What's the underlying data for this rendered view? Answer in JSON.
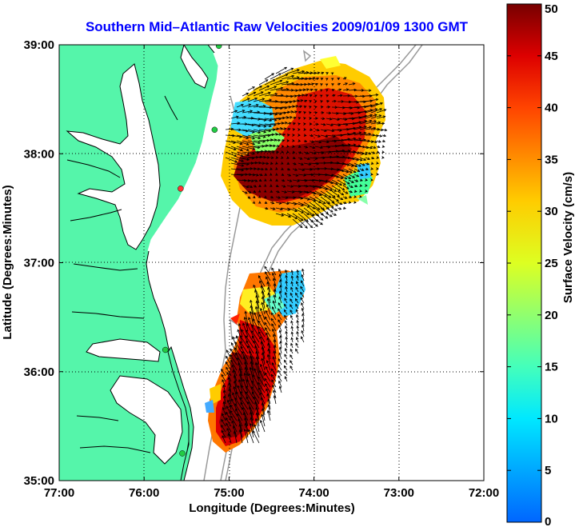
{
  "title": "Southern Mid–Atlantic Raw Velocities 2009/01/09 1300 GMT",
  "colors": {
    "title": "#0000ff",
    "land": "#55f5aa",
    "water": "#ffffff",
    "coast": "#000000",
    "bathy": "#9a9a9a",
    "grid": "#000000",
    "station": "#22cc44",
    "station_highlight": "#ff3333"
  },
  "map": {
    "xlabel": "Longitude (Degrees:Minutes)",
    "ylabel": "Latitude (Degrees:Minutes)",
    "lon_range": [
      -77,
      -72
    ],
    "lat_range": [
      35,
      39
    ],
    "x_ticks": [
      {
        "value": -77,
        "label": "77:00"
      },
      {
        "value": -76,
        "label": "76:00"
      },
      {
        "value": -75,
        "label": "75:00"
      },
      {
        "value": -74,
        "label": "74:00"
      },
      {
        "value": -73,
        "label": "73:00"
      },
      {
        "value": -72,
        "label": "72:00"
      }
    ],
    "y_ticks": [
      {
        "value": 35,
        "label": "35:00"
      },
      {
        "value": 36,
        "label": "36:00"
      },
      {
        "value": 37,
        "label": "37:00"
      },
      {
        "value": 38,
        "label": "38:00"
      },
      {
        "value": 39,
        "label": "39:00"
      }
    ],
    "grid": "dotted"
  },
  "colorbar": {
    "label": "Surface Velocity (cm/s)",
    "min": 0,
    "max": 50,
    "ticks": [
      {
        "value": 0,
        "label": "0"
      },
      {
        "value": 5,
        "label": "5"
      },
      {
        "value": 10,
        "label": "10"
      },
      {
        "value": 15,
        "label": "15"
      },
      {
        "value": 20,
        "label": "20"
      },
      {
        "value": 25,
        "label": "25"
      },
      {
        "value": 30,
        "label": "30"
      },
      {
        "value": 35,
        "label": "35"
      },
      {
        "value": 40,
        "label": "40"
      },
      {
        "value": 45,
        "label": "45"
      },
      {
        "value": 50,
        "label": "50"
      }
    ]
  },
  "stations": [
    {
      "lon": -75.12,
      "lat": 38.99,
      "color": "station"
    },
    {
      "lon": -75.17,
      "lat": 38.22,
      "color": "station"
    },
    {
      "lon": -75.57,
      "lat": 37.68,
      "color": "station_highlight"
    },
    {
      "lon": -75.75,
      "lat": 36.2,
      "color": "station"
    },
    {
      "lon": -75.55,
      "lat": 35.25,
      "color": "station"
    }
  ]
}
